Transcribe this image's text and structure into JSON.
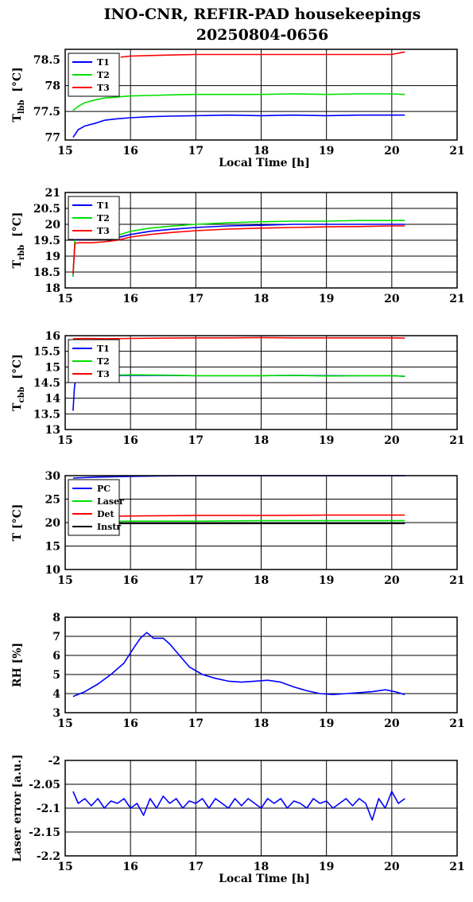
{
  "title": "INO-CNR, REFIR-PAD housekeepings",
  "subtitle": "20250804-0656",
  "colors": {
    "blue": "#0000ff",
    "green": "#00e000",
    "red": "#ff0000",
    "black": "#000000"
  },
  "chart_data": [
    {
      "type": "line",
      "id": "tlbb",
      "ylabel_main": "T",
      "ylabel_sub": "lbb",
      "ylabel_unit": "[°C]",
      "xlabel": "Local Time [h]",
      "xlim": [
        15,
        21
      ],
      "xticks": [
        "15",
        "16",
        "17",
        "18",
        "19",
        "20",
        "21"
      ],
      "ylim": [
        76.95,
        78.7
      ],
      "yticks": [
        {
          "v": 77,
          "label": "77"
        },
        {
          "v": 77.5,
          "label": "77.5"
        },
        {
          "v": 78,
          "label": "78"
        },
        {
          "v": 78.5,
          "label": "78.5"
        }
      ],
      "grid": true,
      "legend": "top-left",
      "series": [
        {
          "name": "T1",
          "color": "#0000ff",
          "x": [
            15.12,
            15.2,
            15.3,
            15.45,
            15.6,
            15.8,
            16.0,
            16.3,
            16.6,
            17.0,
            17.5,
            18.0,
            18.5,
            19.0,
            19.5,
            20.0,
            20.2
          ],
          "y": [
            77.0,
            77.15,
            77.22,
            77.27,
            77.33,
            77.36,
            77.38,
            77.4,
            77.41,
            77.42,
            77.43,
            77.42,
            77.43,
            77.42,
            77.43,
            77.43,
            77.43
          ]
        },
        {
          "name": "T2",
          "color": "#00e000",
          "x": [
            15.12,
            15.2,
            15.3,
            15.45,
            15.6,
            15.8,
            16.0,
            16.3,
            16.6,
            17.0,
            17.5,
            18.0,
            18.5,
            19.0,
            19.5,
            20.0,
            20.2
          ],
          "y": [
            77.52,
            77.6,
            77.67,
            77.72,
            77.76,
            77.78,
            77.8,
            77.81,
            77.82,
            77.83,
            77.83,
            77.83,
            77.84,
            77.83,
            77.84,
            77.84,
            77.83
          ]
        },
        {
          "name": "T3",
          "color": "#ff0000",
          "x": [
            15.85,
            16.0,
            16.3,
            16.6,
            17.0,
            17.5,
            18.0,
            18.5,
            19.0,
            19.5,
            20.0,
            20.2
          ],
          "y": [
            78.55,
            78.57,
            78.58,
            78.59,
            78.6,
            78.6,
            78.6,
            78.6,
            78.6,
            78.6,
            78.6,
            78.65
          ]
        }
      ]
    },
    {
      "type": "line",
      "id": "trbb",
      "ylabel_main": "T",
      "ylabel_sub": "rbb",
      "ylabel_unit": "[°C]",
      "xlabel": "",
      "xlim": [
        15,
        21
      ],
      "xticks": [
        "15",
        "16",
        "17",
        "18",
        "19",
        "20",
        "21"
      ],
      "ylim": [
        18,
        21
      ],
      "yticks": [
        {
          "v": 18,
          "label": "18"
        },
        {
          "v": 18.5,
          "label": "18.5"
        },
        {
          "v": 19,
          "label": "19"
        },
        {
          "v": 19.5,
          "label": "19.5"
        },
        {
          "v": 20,
          "label": "20"
        },
        {
          "v": 20.5,
          "label": "20.5"
        },
        {
          "v": 21,
          "label": "21"
        }
      ],
      "grid": true,
      "legend": "top-left",
      "series": [
        {
          "name": "T1",
          "color": "#0000ff",
          "x": [
            15.12,
            15.15,
            15.2,
            15.4,
            15.6,
            15.8,
            16.0,
            16.3,
            16.6,
            17.0,
            17.5,
            18.0,
            18.5,
            19.0,
            19.5,
            20.0,
            20.2
          ],
          "y": [
            18.4,
            19.5,
            19.52,
            19.53,
            19.55,
            19.58,
            19.68,
            19.78,
            19.84,
            19.9,
            19.95,
            19.97,
            20.0,
            20.0,
            20.0,
            20.0,
            20.0
          ]
        },
        {
          "name": "T2",
          "color": "#00e000",
          "x": [
            15.12,
            15.15,
            15.2,
            15.4,
            15.6,
            15.8,
            16.0,
            16.3,
            16.6,
            17.0,
            17.5,
            18.0,
            18.5,
            19.0,
            19.5,
            20.0,
            20.2
          ],
          "y": [
            18.35,
            19.55,
            19.58,
            19.6,
            19.62,
            19.65,
            19.78,
            19.88,
            19.94,
            20.0,
            20.05,
            20.08,
            20.1,
            20.1,
            20.12,
            20.12,
            20.12
          ]
        },
        {
          "name": "T3",
          "color": "#ff0000",
          "x": [
            15.12,
            15.15,
            15.2,
            15.4,
            15.6,
            15.8,
            16.0,
            16.3,
            16.6,
            17.0,
            17.5,
            18.0,
            18.5,
            19.0,
            19.5,
            20.0,
            20.2
          ],
          "y": [
            18.45,
            19.4,
            19.42,
            19.42,
            19.45,
            19.5,
            19.6,
            19.68,
            19.74,
            19.8,
            19.85,
            19.88,
            19.9,
            19.92,
            19.93,
            19.95,
            19.95
          ]
        }
      ]
    },
    {
      "type": "line",
      "id": "tcbb",
      "ylabel_main": "T",
      "ylabel_sub": "cbb",
      "ylabel_unit": "[°C]",
      "xlabel": "",
      "xlim": [
        15,
        21
      ],
      "xticks": [
        "15",
        "16",
        "17",
        "18",
        "19",
        "20",
        "21"
      ],
      "ylim": [
        13,
        16
      ],
      "yticks": [
        {
          "v": 13,
          "label": "13"
        },
        {
          "v": 13.5,
          "label": "13.5"
        },
        {
          "v": 14,
          "label": "14"
        },
        {
          "v": 14.5,
          "label": "14.5"
        },
        {
          "v": 15,
          "label": "15"
        },
        {
          "v": 15.5,
          "label": "15.5"
        },
        {
          "v": 16,
          "label": "16"
        }
      ],
      "grid": true,
      "legend": "top-left",
      "series": [
        {
          "name": "T1",
          "color": "#0000ff",
          "x": [
            15.12,
            15.14,
            15.16,
            15.2,
            15.5,
            16.0,
            16.5,
            17.0,
            17.5,
            18.0,
            18.5,
            19.0,
            19.5,
            20.0,
            20.2
          ],
          "y": [
            13.6,
            14.3,
            14.65,
            14.7,
            14.72,
            14.73,
            14.73,
            14.72,
            14.72,
            14.72,
            14.73,
            14.72,
            14.72,
            14.72,
            14.7
          ]
        },
        {
          "name": "T2",
          "color": "#00e000",
          "x": [
            15.12,
            15.14,
            15.16,
            15.2,
            15.5,
            16.0,
            16.5,
            17.0,
            17.5,
            18.0,
            18.5,
            19.0,
            19.5,
            20.0,
            20.2
          ],
          "y": [
            14.5,
            14.6,
            14.68,
            14.7,
            14.72,
            14.75,
            14.74,
            14.72,
            14.72,
            14.72,
            14.73,
            14.71,
            14.72,
            14.72,
            14.7
          ]
        },
        {
          "name": "T3",
          "color": "#ff0000",
          "x": [
            15.12,
            15.3,
            15.6,
            16.0,
            16.5,
            17.0,
            17.5,
            18.0,
            18.5,
            19.0,
            19.5,
            20.0,
            20.2
          ],
          "y": [
            15.9,
            15.91,
            15.9,
            15.91,
            15.92,
            15.93,
            15.93,
            15.94,
            15.93,
            15.93,
            15.93,
            15.93,
            15.92
          ]
        }
      ]
    },
    {
      "type": "line",
      "id": "tinst",
      "ylabel_main": "T [°C]",
      "ylabel_sub": "",
      "ylabel_unit": "",
      "xlabel": "",
      "xlim": [
        15,
        21
      ],
      "xticks": [
        "15",
        "16",
        "17",
        "18",
        "19",
        "20",
        "21"
      ],
      "ylim": [
        10,
        30
      ],
      "yticks": [
        {
          "v": 10,
          "label": "10"
        },
        {
          "v": 15,
          "label": "15"
        },
        {
          "v": 20,
          "label": "20"
        },
        {
          "v": 25,
          "label": "25"
        },
        {
          "v": 30,
          "label": "30"
        }
      ],
      "grid": true,
      "legend": "top-left",
      "series": [
        {
          "name": "PC",
          "color": "#0000ff",
          "x": [
            15.12,
            15.5,
            16.0,
            16.5,
            17.0,
            18.0,
            19.0,
            20.0,
            20.2
          ],
          "y": [
            29.5,
            29.7,
            29.85,
            29.95,
            30.0,
            30.0,
            30.0,
            30.0,
            30.0
          ]
        },
        {
          "name": "Laser",
          "color": "#00e000",
          "x": [
            15.12,
            16.0,
            17.0,
            18.0,
            19.0,
            20.0,
            20.2
          ],
          "y": [
            20.2,
            20.3,
            20.3,
            20.4,
            20.4,
            20.4,
            20.4
          ]
        },
        {
          "name": "Det",
          "color": "#ff0000",
          "x": [
            15.12,
            16.0,
            17.0,
            18.0,
            19.0,
            20.0,
            20.2
          ],
          "y": [
            21.2,
            21.4,
            21.5,
            21.5,
            21.6,
            21.6,
            21.6
          ]
        },
        {
          "name": "Instr",
          "color": "#000000",
          "x": [
            15.12,
            16.0,
            17.0,
            18.0,
            19.0,
            20.0,
            20.2
          ],
          "y": [
            19.7,
            19.8,
            19.8,
            19.8,
            19.8,
            19.8,
            19.8
          ]
        }
      ]
    },
    {
      "type": "line",
      "id": "rh",
      "ylabel_main": "RH [%]",
      "ylabel_sub": "",
      "ylabel_unit": "",
      "xlabel": "",
      "xlim": [
        15,
        21
      ],
      "xticks": [
        "15",
        "16",
        "17",
        "18",
        "19",
        "20",
        "21"
      ],
      "ylim": [
        3,
        8
      ],
      "yticks": [
        {
          "v": 3,
          "label": "3"
        },
        {
          "v": 4,
          "label": "4"
        },
        {
          "v": 5,
          "label": "5"
        },
        {
          "v": 6,
          "label": "6"
        },
        {
          "v": 7,
          "label": "7"
        },
        {
          "v": 8,
          "label": "8"
        }
      ],
      "grid": true,
      "legend": "none",
      "series": [
        {
          "name": "",
          "color": "#0000ff",
          "x": [
            15.12,
            15.3,
            15.5,
            15.7,
            15.9,
            16.05,
            16.15,
            16.25,
            16.35,
            16.5,
            16.6,
            16.75,
            16.9,
            17.1,
            17.3,
            17.5,
            17.7,
            17.9,
            18.1,
            18.3,
            18.5,
            18.7,
            18.9,
            19.1,
            19.3,
            19.5,
            19.7,
            19.9,
            20.05,
            20.2
          ],
          "y": [
            3.85,
            4.1,
            4.5,
            5.0,
            5.6,
            6.4,
            6.9,
            7.2,
            6.9,
            6.9,
            6.6,
            6.0,
            5.4,
            5.0,
            4.8,
            4.65,
            4.6,
            4.65,
            4.7,
            4.6,
            4.35,
            4.15,
            4.0,
            3.95,
            4.0,
            4.05,
            4.1,
            4.2,
            4.1,
            3.95
          ]
        }
      ]
    },
    {
      "type": "line",
      "id": "laser",
      "ylabel_main": "Laser error [a.u.]",
      "ylabel_sub": "",
      "ylabel_unit": "",
      "xlabel": "Local Time [h]",
      "xlim": [
        15,
        21
      ],
      "xticks": [
        "15",
        "16",
        "17",
        "18",
        "19",
        "20",
        "21"
      ],
      "ylim": [
        -2.2,
        -2.0
      ],
      "yticks": [
        {
          "v": -2.2,
          "label": "-2.2"
        },
        {
          "v": -2.15,
          "label": "-2.15"
        },
        {
          "v": -2.1,
          "label": "-2.1"
        },
        {
          "v": -2.05,
          "label": "-2.05"
        },
        {
          "v": -2,
          "label": "-2"
        }
      ],
      "grid": true,
      "legend": "none",
      "series": [
        {
          "name": "",
          "color": "#0000ff",
          "x": [
            15.12,
            15.2,
            15.3,
            15.4,
            15.5,
            15.6,
            15.7,
            15.8,
            15.9,
            16.0,
            16.1,
            16.2,
            16.3,
            16.4,
            16.5,
            16.6,
            16.7,
            16.8,
            16.9,
            17.0,
            17.1,
            17.2,
            17.3,
            17.4,
            17.5,
            17.6,
            17.7,
            17.8,
            17.9,
            18.0,
            18.1,
            18.2,
            18.3,
            18.4,
            18.5,
            18.6,
            18.7,
            18.8,
            18.9,
            19.0,
            19.1,
            19.2,
            19.3,
            19.4,
            19.5,
            19.6,
            19.7,
            19.8,
            19.9,
            20.0,
            20.1,
            20.2
          ],
          "y": [
            -2.065,
            -2.09,
            -2.08,
            -2.095,
            -2.08,
            -2.1,
            -2.085,
            -2.09,
            -2.08,
            -2.1,
            -2.09,
            -2.115,
            -2.08,
            -2.1,
            -2.075,
            -2.09,
            -2.08,
            -2.1,
            -2.085,
            -2.09,
            -2.08,
            -2.1,
            -2.08,
            -2.09,
            -2.1,
            -2.08,
            -2.095,
            -2.08,
            -2.09,
            -2.1,
            -2.08,
            -2.09,
            -2.08,
            -2.1,
            -2.085,
            -2.09,
            -2.1,
            -2.08,
            -2.09,
            -2.085,
            -2.1,
            -2.09,
            -2.08,
            -2.095,
            -2.08,
            -2.09,
            -2.125,
            -2.08,
            -2.1,
            -2.065,
            -2.09,
            -2.08
          ]
        }
      ]
    }
  ]
}
